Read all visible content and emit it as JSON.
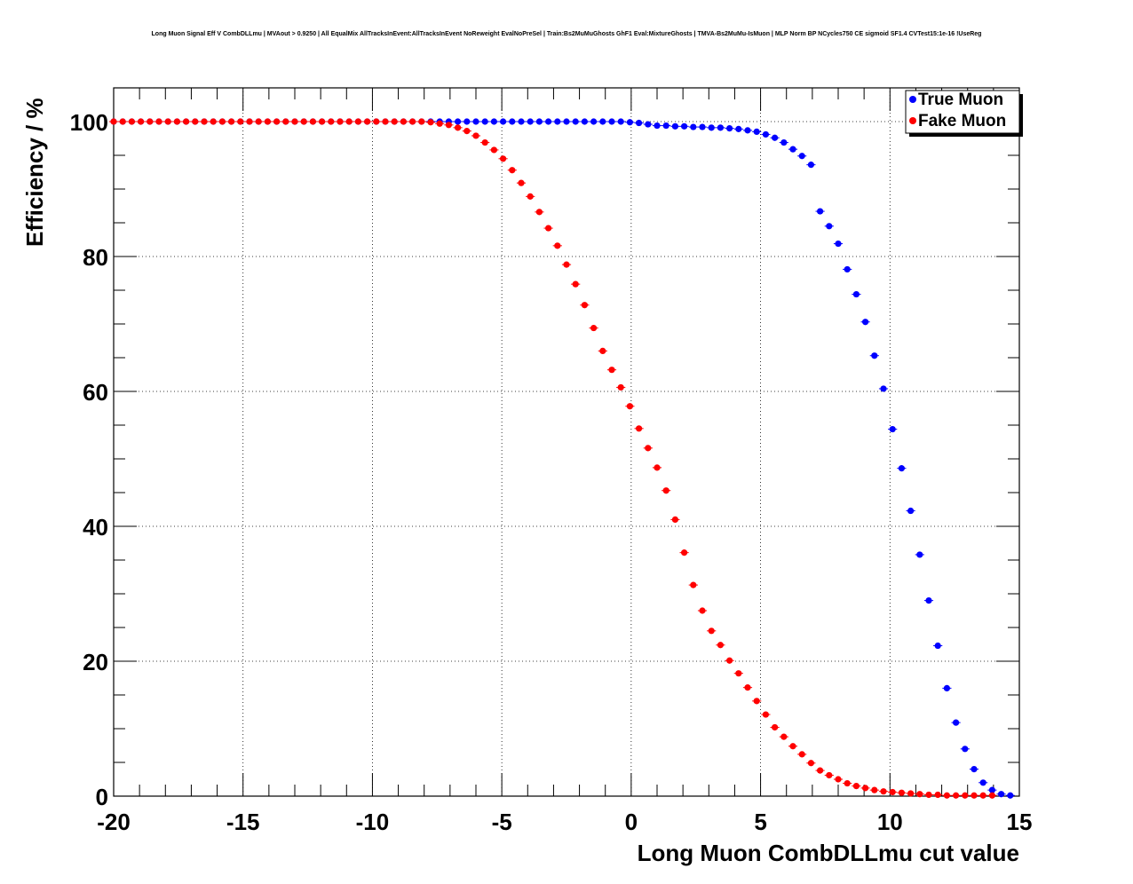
{
  "chart_data": {
    "type": "scatter",
    "title": "Long Muon Signal Eff V CombDLLmu | MVAout > 0.9250 | All EqualMix AllTracksInEvent:AllTracksInEvent NoReweight EvalNoPreSel | Train:Bs2MuMuGhosts GhF1 Eval:MixtureGhosts | TMVA-Bs2MuMu-IsMuon | MLP Norm BP NCycles750 CE sigmoid SF1.4 CVTest15:1e-16 !UseReg",
    "xlabel": "Long Muon CombDLLmu cut value",
    "ylabel": "Efficiency / %",
    "xlim": [
      -20,
      15
    ],
    "ylim": [
      0,
      105
    ],
    "xticks": [
      -20,
      -15,
      -10,
      -5,
      0,
      5,
      10,
      15
    ],
    "yticks": [
      0,
      20,
      40,
      60,
      80,
      100
    ],
    "grid": true,
    "legend_position": "top-right",
    "series": [
      {
        "name": "True Muon",
        "color": "#0000ff",
        "x": [
          -20,
          -19.65,
          -19.3,
          -18.95,
          -18.6,
          -18.25,
          -17.9,
          -17.55,
          -17.2,
          -16.85,
          -16.5,
          -16.15,
          -15.8,
          -15.45,
          -15.1,
          -14.75,
          -14.4,
          -14.05,
          -13.7,
          -13.35,
          -13,
          -12.65,
          -12.3,
          -11.95,
          -11.6,
          -11.25,
          -10.9,
          -10.55,
          -10.2,
          -9.85,
          -9.5,
          -9.15,
          -8.8,
          -8.45,
          -8.1,
          -7.75,
          -7.4,
          -7.05,
          -6.7,
          -6.35,
          -6,
          -5.65,
          -5.3,
          -4.95,
          -4.6,
          -4.25,
          -3.9,
          -3.55,
          -3.2,
          -2.85,
          -2.5,
          -2.15,
          -1.8,
          -1.45,
          -1.1,
          -0.75,
          -0.4,
          -0.05,
          0.3,
          0.65,
          1,
          1.35,
          1.7,
          2.05,
          2.4,
          2.75,
          3.1,
          3.45,
          3.8,
          4.15,
          4.5,
          4.85,
          5.2,
          5.55,
          5.9,
          6.25,
          6.6,
          6.95,
          7.3,
          7.65,
          8,
          8.35,
          8.7,
          9.05,
          9.4,
          9.75,
          10.1,
          10.45,
          10.8,
          11.15,
          11.5,
          11.85,
          12.2,
          12.55,
          12.9,
          13.25,
          13.6,
          13.95,
          14.3,
          14.65
        ],
        "y": [
          100,
          100,
          100,
          100,
          100,
          100,
          100,
          100,
          100,
          100,
          100,
          100,
          100,
          100,
          100,
          100,
          100,
          100,
          100,
          100,
          100,
          100,
          100,
          100,
          100,
          100,
          100,
          100,
          100,
          100,
          100,
          100,
          100,
          100,
          100,
          100,
          100,
          100,
          100,
          100,
          100,
          100,
          100,
          100,
          100,
          100,
          100,
          100,
          100,
          100,
          100,
          100,
          100,
          100,
          100,
          100,
          100,
          99.9,
          99.8,
          99.6,
          99.4,
          99.4,
          99.3,
          99.3,
          99.2,
          99.2,
          99.1,
          99.1,
          99.0,
          98.9,
          98.7,
          98.5,
          98.1,
          97.6,
          96.9,
          95.9,
          94.9,
          93.6,
          86.7,
          84.5,
          81.9,
          78.1,
          74.4,
          70.3,
          65.3,
          60.4,
          54.4,
          48.6,
          42.3,
          35.8,
          29.0,
          22.3,
          16.0,
          10.9,
          7.0,
          4.0,
          2.0,
          0.9,
          0.3,
          0.1
        ]
      },
      {
        "name": "Fake Muon",
        "color": "#ff0000",
        "x": [
          -20,
          -19.65,
          -19.3,
          -18.95,
          -18.6,
          -18.25,
          -17.9,
          -17.55,
          -17.2,
          -16.85,
          -16.5,
          -16.15,
          -15.8,
          -15.45,
          -15.1,
          -14.75,
          -14.4,
          -14.05,
          -13.7,
          -13.35,
          -13,
          -12.65,
          -12.3,
          -11.95,
          -11.6,
          -11.25,
          -10.9,
          -10.55,
          -10.2,
          -9.85,
          -9.5,
          -9.15,
          -8.8,
          -8.45,
          -8.1,
          -7.75,
          -7.4,
          -7.05,
          -6.7,
          -6.35,
          -6,
          -5.65,
          -5.3,
          -4.95,
          -4.6,
          -4.25,
          -3.9,
          -3.55,
          -3.2,
          -2.85,
          -2.5,
          -2.15,
          -1.8,
          -1.45,
          -1.1,
          -0.75,
          -0.4,
          -0.05,
          0.3,
          0.65,
          1,
          1.35,
          1.7,
          2.05,
          2.4,
          2.75,
          3.1,
          3.45,
          3.8,
          4.15,
          4.5,
          4.85,
          5.2,
          5.55,
          5.9,
          6.25,
          6.6,
          6.95,
          7.3,
          7.65,
          8,
          8.35,
          8.7,
          9.05,
          9.4,
          9.75,
          10.1,
          10.45,
          10.8,
          11.15,
          11.5,
          11.85,
          12.2,
          12.55,
          12.9,
          13.25,
          13.6,
          13.95
        ],
        "y": [
          100,
          100,
          100,
          100,
          100,
          100,
          100,
          100,
          100,
          100,
          100,
          100,
          100,
          100,
          100,
          100,
          100,
          100,
          100,
          100,
          100,
          100,
          100,
          100,
          100,
          100,
          100,
          100,
          100,
          100,
          100,
          100,
          100,
          100,
          100,
          99.9,
          99.7,
          99.5,
          99.1,
          98.6,
          97.9,
          96.9,
          95.8,
          94.5,
          92.8,
          90.9,
          88.9,
          86.6,
          84.2,
          81.6,
          78.8,
          75.9,
          72.8,
          69.4,
          66.0,
          63.2,
          60.6,
          57.8,
          54.5,
          51.6,
          48.7,
          45.3,
          41.0,
          36.1,
          31.3,
          27.5,
          24.5,
          22.4,
          20.1,
          18.2,
          16.1,
          14.1,
          12.1,
          10.2,
          8.8,
          7.4,
          6.2,
          4.9,
          3.8,
          3.1,
          2.5,
          1.9,
          1.5,
          1.2,
          0.9,
          0.7,
          0.6,
          0.5,
          0.4,
          0.3,
          0.2,
          0.2,
          0.1,
          0.1,
          0.1,
          0.1,
          0.1,
          0.1
        ]
      }
    ]
  }
}
